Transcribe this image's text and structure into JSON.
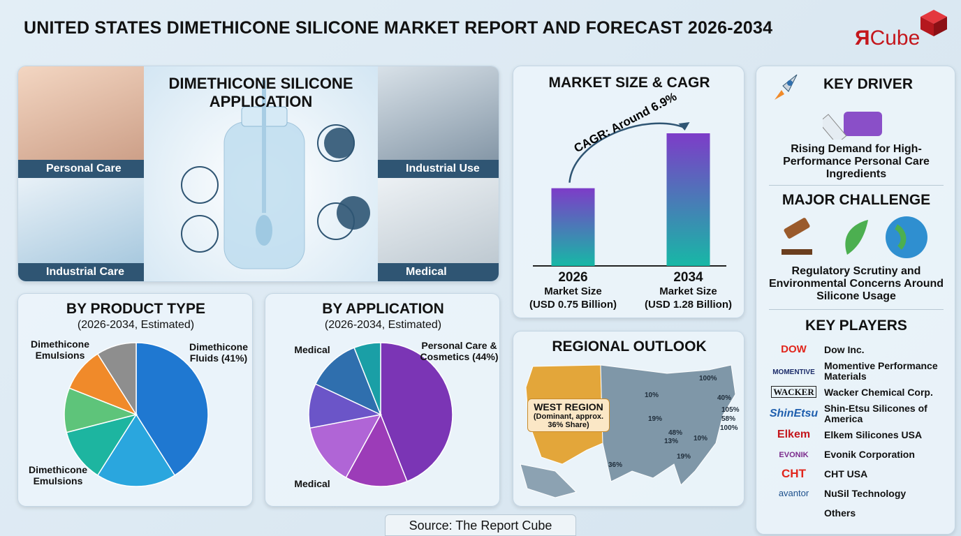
{
  "header": {
    "title": "UNITED STATES DIMETHICONE SILICONE MARKET REPORT AND FORECAST 2026-2034",
    "logo_mark": "Я",
    "logo_text": "Cube"
  },
  "application": {
    "title": "DIMETHICONE SILICONE APPLICATION",
    "labels": [
      "Personal Care",
      "Industrial Use",
      "Industrial Care",
      "Medical"
    ]
  },
  "chart_data": [
    {
      "type": "bar",
      "title": "MARKET SIZE & CAGR",
      "categories": [
        "2026",
        "2034"
      ],
      "values": [
        0.75,
        1.28
      ],
      "value_labels": [
        "(USD 0.75 Billion)",
        "(USD 1.28 Billion)"
      ],
      "category_sublabel": "Market Size",
      "annotation": "CAGR: Around 6.9%",
      "colors": [
        "#17b8a6",
        "#7d3cc8"
      ]
    },
    {
      "type": "pie",
      "title": "BY PRODUCT TYPE",
      "subtitle": "(2026-2034, Estimated)",
      "categories": [
        "Dimethicone Fluids (41%)",
        null,
        "Dimethicone Emulsions",
        null,
        "Dimethicone Emulsions",
        null
      ],
      "values": [
        41,
        18,
        12,
        10,
        10,
        9
      ],
      "colors": [
        "#1f78d1",
        "#2aa6de",
        "#1db5a0",
        "#5ec47a",
        "#f08a2a",
        "#8e8e8e"
      ]
    },
    {
      "type": "pie",
      "title": "BY APPLICATION",
      "subtitle": "(2026-2034, Estimated)",
      "categories": [
        "Personal Care & Cosmetics (44%)",
        null,
        "Medical",
        null,
        "Medical",
        null
      ],
      "values": [
        44,
        14,
        14,
        10,
        12,
        6
      ],
      "colors": [
        "#7b35b5",
        "#9c3cb8",
        "#b065d6",
        "#6b55c8",
        "#2f6fae",
        "#1a9fa6"
      ]
    }
  ],
  "regional": {
    "title": "REGIONAL OUTLOOK",
    "callout_title": "WEST REGION",
    "callout_text": "(Dominant, approx. 36% Share)",
    "labels": [
      "100%",
      "40%",
      "105%",
      "58%",
      "100%",
      "10%",
      "19%",
      "48%",
      "13%",
      "10%",
      "19%",
      "36%"
    ]
  },
  "sidebar": {
    "key_driver": {
      "title": "KEY DRIVER",
      "text": "Rising Demand for High-Performance Personal Care Ingredients"
    },
    "challenge": {
      "title": "MAJOR CHALLENGE",
      "text": "Regulatory Scrutiny and Environmental Concerns Around Silicone Usage"
    },
    "players": {
      "title": "KEY PLAYERS",
      "items": [
        {
          "logo": "DOW",
          "name": "Dow Inc."
        },
        {
          "logo": "MOMENTIVE",
          "name": "Momentive Performance Materials"
        },
        {
          "logo": "WACKER",
          "name": "Wacker Chemical Corp."
        },
        {
          "logo": "ShinEtsu",
          "name": "Shin-Etsu Silicones of America"
        },
        {
          "logo": "Elkem",
          "name": "Elkem Silicones USA"
        },
        {
          "logo": "EVONIK",
          "name": "Evonik Corporation"
        },
        {
          "logo": "CHT",
          "name": "CHT USA"
        },
        {
          "logo": "avantor",
          "name": "NuSil Technology"
        },
        {
          "name": "Others"
        }
      ]
    }
  },
  "source": "Source: The Report Cube"
}
